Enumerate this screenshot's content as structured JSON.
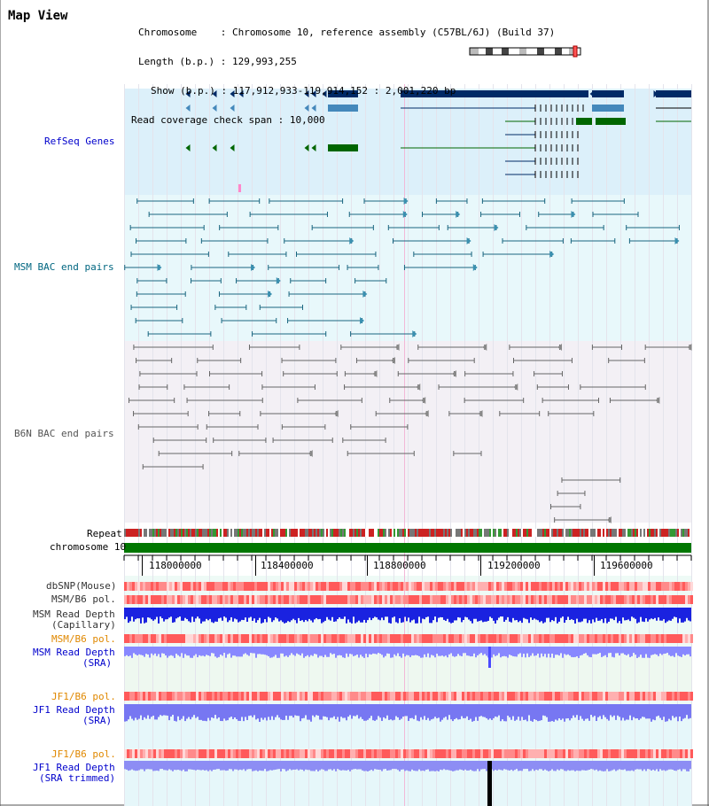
{
  "header": {
    "title": "Map View",
    "chromosome_label": "Chromosome",
    "chromosome_value": "Chromosome 10, reference assembly (C57BL/6J) (Build 37)",
    "length_label": "Length (b.p.)",
    "length_value": "129,993,255",
    "show_label": "Show (b.p.)",
    "show_value": "117,912,933-119,914,152 : 2,001,220 bp",
    "coverage_label": "Read coverage check span",
    "coverage_value": "10,000"
  },
  "tracks": {
    "refseq": "RefSeq Genes",
    "msm_bac": "MSM BAC end pairs",
    "b6n_bac": "B6N BAC end pairs",
    "repeat": "Repeat",
    "chromosome": "chromosome 10",
    "dbsnp": "dbSNP(Mouse)",
    "msm_b6_pol": "MSM/B6 pol.",
    "msm_read_depth_cap_1": "MSM Read Depth",
    "msm_read_depth_cap_2": "(Capillary)",
    "msm_b6_pol_sra": "MSM/B6 pol.",
    "msm_read_depth_sra_1": "MSM Read Depth",
    "msm_read_depth_sra_2": "(SRA)",
    "jf1_b6_pol": "JF1/B6 pol.",
    "jf1_read_depth_1": "JF1 Read Depth",
    "jf1_read_depth_2": "(SRA)",
    "jf1_b6_pol_2": "JF1/B6 pol.",
    "jf1_read_depth_trim_1": "JF1 Read Depth",
    "jf1_read_depth_trim_2": "(SRA trimmed)"
  },
  "axis": {
    "ticks": [
      "118000000",
      "118400000",
      "118800000",
      "119200000",
      "119600000"
    ]
  },
  "colors": {
    "label_blue": "#0000cc",
    "label_teal": "#006680",
    "label_orange": "#e08800",
    "refseq_dark": "#002a66",
    "refseq_light": "#4488bb",
    "refseq_green": "#006600",
    "msm_line": "#1a6680",
    "b6n_line": "#666666",
    "chrom_green": "#007700"
  }
}
